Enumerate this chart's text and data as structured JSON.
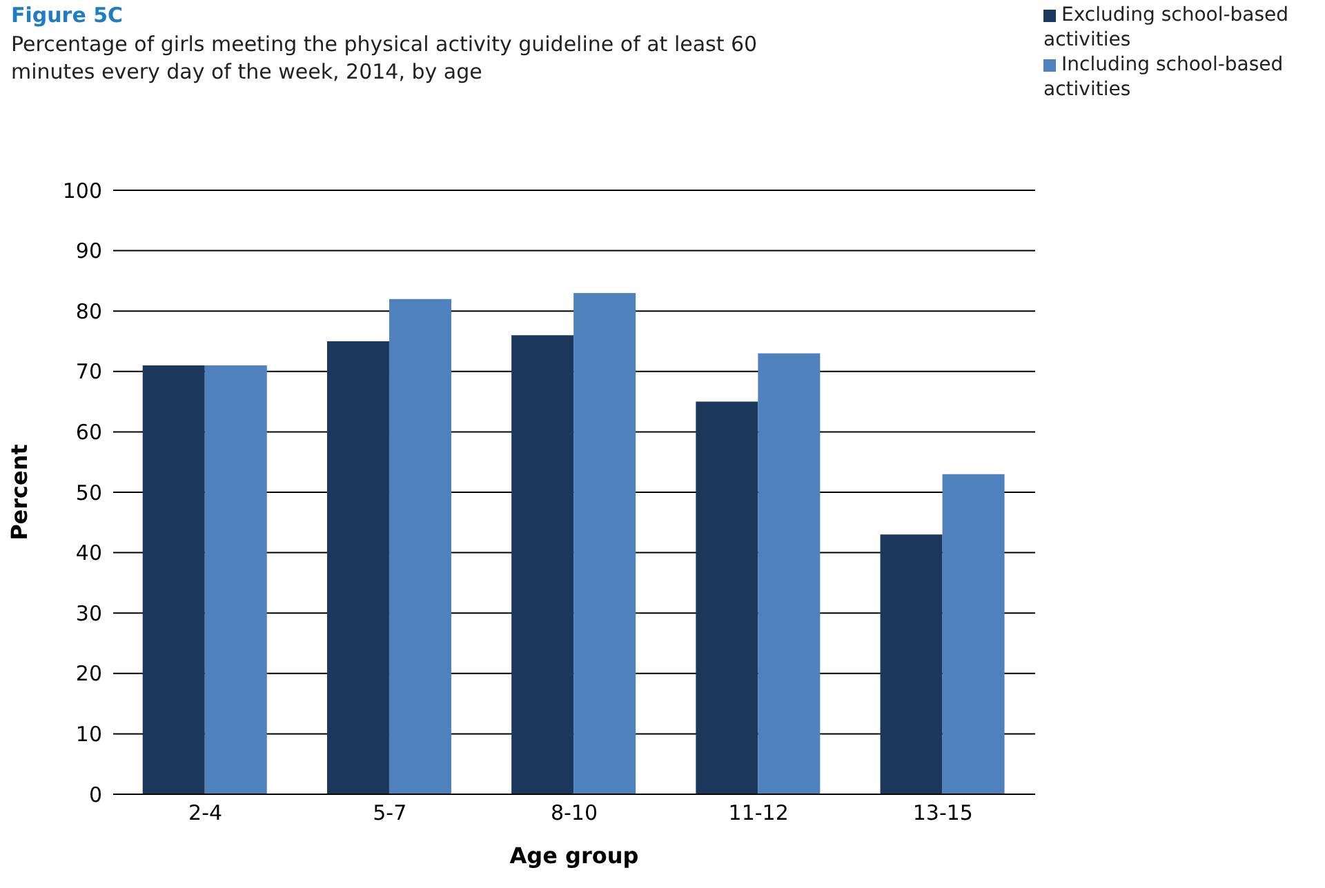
{
  "chart_data": {
    "type": "bar",
    "title": "Figure 5C",
    "subtitle": "Percentage of girls meeting the physical activity guideline of at least 60 minutes every day of the week, 2014, by age",
    "xlabel": "Age group",
    "ylabel": "Percent",
    "categories": [
      "2-4",
      "5-7",
      "8-10",
      "11-12",
      "13-15"
    ],
    "series": [
      {
        "name": "Excluding school-based activities",
        "color": "#1b375c",
        "values": [
          71,
          75,
          76,
          65,
          43
        ]
      },
      {
        "name": "Including school-based activities",
        "color": "#4f81bd",
        "values": [
          71,
          82,
          83,
          73,
          53
        ]
      }
    ],
    "ylim": [
      0,
      100
    ],
    "yticks": [
      0,
      10,
      20,
      30,
      40,
      50,
      60,
      70,
      80,
      90,
      100
    ],
    "grid": "y",
    "legend": "top right"
  }
}
